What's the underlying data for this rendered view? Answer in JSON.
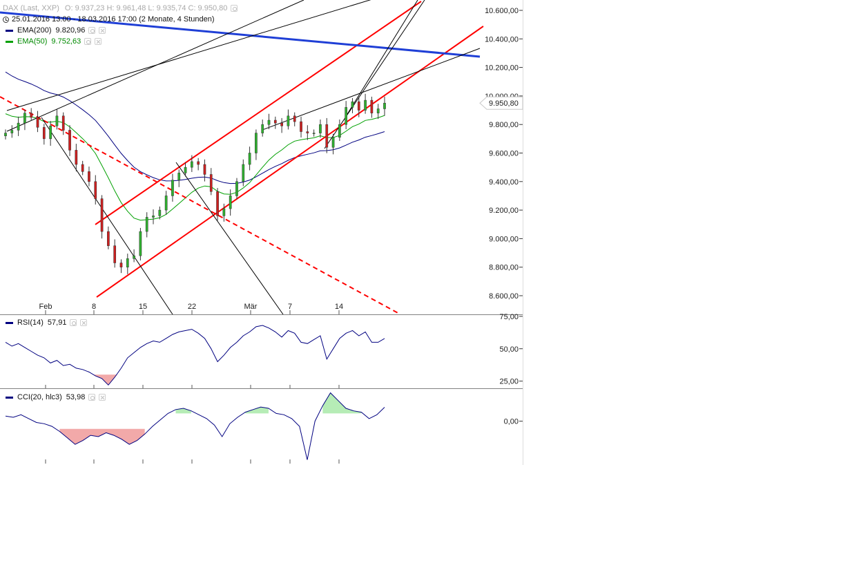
{
  "header": {
    "instrument": "DAX (Last, XXP)",
    "ohlc": "O: 9.937,23  H: 9.961,48  L: 9.935,74  C: 9.950,80",
    "range": "25.01.2016 13:00 - 18.03.2016 17:00 (2 Monate, 4 Stunden)"
  },
  "legend": {
    "ema200": {
      "label": "EMA(200)",
      "value": "9.820,96",
      "color": "#000080"
    },
    "ema50": {
      "label": "EMA(50)",
      "value": "9.752,63",
      "color": "#00a000"
    },
    "rsi": {
      "label": "RSI(14)",
      "value": "57,91",
      "color": "#000080"
    },
    "cci": {
      "label": "CCI(20, hlc3)",
      "value": "53,98",
      "color": "#000080"
    }
  },
  "icons": {
    "settings": "gear-icon",
    "close": "close-icon",
    "clock": "clock-icon"
  },
  "last_price_label": "9.950,80",
  "chart_data": [
    {
      "type": "candlestick",
      "title": "DAX (Last, XXP)",
      "x_tick_labels": [
        "Feb",
        "8",
        "15",
        "22",
        "Mär",
        "7",
        "14"
      ],
      "y_tick_labels": [
        "10.600,00",
        "10.400,00",
        "10.200,00",
        "10.000,00",
        "9.800,00",
        "9.600,00",
        "9.400,00",
        "9.200,00",
        "9.000,00",
        "8.800,00",
        "8.600,00"
      ],
      "y_ticks": [
        10600,
        10400,
        10200,
        10000,
        9800,
        9600,
        9400,
        9200,
        9000,
        8800,
        8600
      ],
      "ylim": [
        8560,
        10680
      ],
      "close": [
        9740,
        9760,
        9810,
        9880,
        9850,
        9780,
        9700,
        9790,
        9860,
        9760,
        9620,
        9520,
        9470,
        9400,
        9280,
        9050,
        8950,
        8830,
        8800,
        8860,
        8880,
        9050,
        9150,
        9160,
        9200,
        9300,
        9410,
        9460,
        9500,
        9540,
        9520,
        9450,
        9330,
        9160,
        9210,
        9300,
        9400,
        9520,
        9600,
        9740,
        9800,
        9830,
        9810,
        9790,
        9860,
        9820,
        9750,
        9740,
        9740,
        9800,
        9640,
        9710,
        9800,
        9920,
        9960,
        9900,
        9970,
        9880,
        9910,
        9950
      ],
      "colors": {
        "up": "#2fb02f",
        "down": "#cc2020"
      },
      "series": [
        {
          "name": "EMA(200)",
          "value": "9.820,96",
          "color": "#000080"
        },
        {
          "name": "EMA(50)",
          "value": "9.752,63",
          "color": "#00a000"
        }
      ],
      "annotations": [
        {
          "kind": "trend-channel",
          "color": "#ff0000"
        },
        {
          "kind": "downtrend-dashed",
          "color": "#ff0000"
        },
        {
          "kind": "long-trendline",
          "color": "#1f3fd6"
        },
        {
          "kind": "helper-lines",
          "color": "#000000"
        }
      ]
    },
    {
      "type": "line",
      "title": "RSI(14)",
      "y_tick_labels": [
        "75,00",
        "50,00",
        "25,00"
      ],
      "y_ticks": [
        75,
        50,
        25
      ],
      "ylim": [
        20,
        76
      ],
      "values": [
        55,
        52,
        54,
        51,
        48,
        45,
        43,
        39,
        41,
        37,
        38,
        35,
        34,
        32,
        29,
        27,
        22,
        28,
        35,
        43,
        47,
        51,
        54,
        56,
        55,
        58,
        61,
        63,
        64,
        65,
        62,
        58,
        50,
        40,
        45,
        51,
        55,
        60,
        63,
        67,
        68,
        66,
        63,
        59,
        64,
        62,
        55,
        54,
        57,
        60,
        42,
        50,
        58,
        62,
        64,
        60,
        63,
        55,
        55,
        57.91
      ],
      "fill_below": 30,
      "color": "#000080"
    },
    {
      "type": "line",
      "title": "CCI(20, hlc3)",
      "y_tick_labels": [
        "0,00"
      ],
      "y_ticks": [
        0
      ],
      "ylim": [
        -170,
        125
      ],
      "values": [
        20,
        15,
        25,
        10,
        -5,
        -10,
        -20,
        -40,
        -65,
        -90,
        -75,
        -55,
        -60,
        -45,
        -55,
        -70,
        -90,
        -75,
        -50,
        -20,
        5,
        30,
        45,
        50,
        40,
        25,
        10,
        -15,
        -60,
        -10,
        15,
        35,
        45,
        55,
        50,
        30,
        25,
        10,
        -20,
        -150,
        0,
        60,
        110,
        80,
        50,
        40,
        35,
        10,
        25,
        53.98
      ],
      "fill_above": 30,
      "fill_below": -30,
      "color": "#000080"
    }
  ]
}
